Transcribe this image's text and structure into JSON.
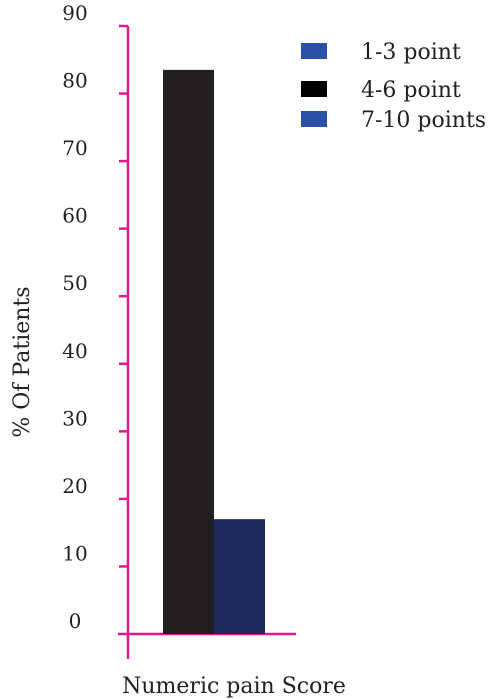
{
  "chart_data": {
    "type": "bar",
    "xlabel": "Numeric pain Score",
    "ylabel": "% Of Patients",
    "ylim": [
      0,
      90
    ],
    "yticks": [
      0,
      10,
      20,
      30,
      40,
      50,
      60,
      70,
      80,
      90
    ],
    "grid": false,
    "legend_position": "top-right",
    "axis_color": "#e0198c",
    "series": [
      {
        "name": "1-3 point",
        "value": 0,
        "color": "#2e4fa8"
      },
      {
        "name": "4-6 point",
        "value": 83.5,
        "color": "#221f20"
      },
      {
        "name": "7-10 points",
        "value": 17,
        "color": "#1e2a5e"
      }
    ],
    "legend": [
      {
        "label": "1-3 point",
        "color": "#2e4fa8"
      },
      {
        "label": "4-6 point",
        "color": "#000000"
      },
      {
        "label": "7-10 points",
        "color": "#2e4fa8"
      }
    ]
  }
}
